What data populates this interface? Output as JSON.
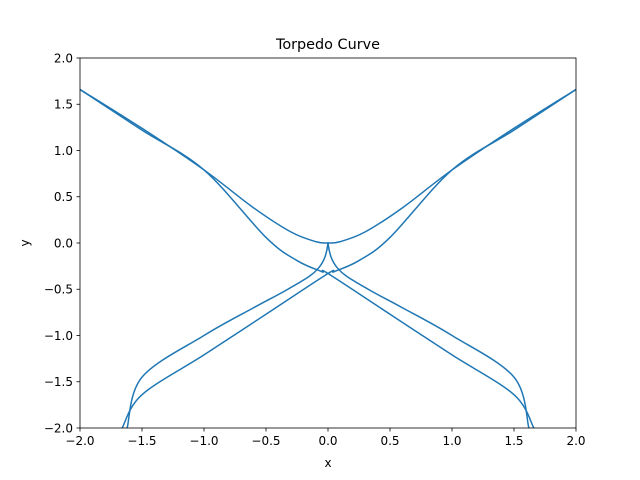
{
  "chart_data": {
    "type": "line",
    "title": "Torpedo Curve",
    "xlabel": "x",
    "ylabel": "y",
    "xlim": [
      -2,
      2
    ],
    "ylim": [
      -2,
      2
    ],
    "grid": false,
    "x_ticks": [
      -2.0,
      -1.5,
      -1.0,
      -0.5,
      0.0,
      0.5,
      1.0,
      1.5,
      2.0
    ],
    "y_ticks": [
      -2.0,
      -1.5,
      -1.0,
      -0.5,
      0.0,
      0.5,
      1.0,
      1.5,
      2.0
    ],
    "x_tick_labels": [
      "−2.0",
      "−1.5",
      "−1.0",
      "−0.5",
      "0.0",
      "0.5",
      "1.0",
      "1.5",
      "2.0"
    ],
    "y_tick_labels": [
      "−2.0",
      "−1.5",
      "−1.0",
      "−0.5",
      "0.0",
      "0.5",
      "1.0",
      "1.5",
      "2.0"
    ],
    "series": [
      {
        "color": "#1f77b4",
        "segments": [
          {
            "points": [
              [
                -2.0,
                1.66
              ],
              [
                -1.5,
                1.24
              ],
              [
                -1.0,
                0.79
              ],
              [
                -0.6,
                0.38
              ],
              [
                -0.3,
                0.12
              ],
              [
                -0.1,
                0.015
              ],
              [
                0.0,
                0.0
              ],
              [
                0.1,
                0.015
              ],
              [
                0.3,
                0.12
              ],
              [
                0.6,
                0.38
              ],
              [
                1.0,
                0.79
              ],
              [
                1.5,
                1.24
              ],
              [
                2.0,
                1.66
              ]
            ]
          },
          {
            "points": [
              [
                -2.0,
                1.66
              ],
              [
                -1.5,
                1.22
              ],
              [
                -1.0,
                0.79
              ],
              [
                -0.5,
                0.06
              ],
              [
                -0.25,
                -0.19
              ],
              [
                -0.05,
                -0.31
              ],
              [
                0.0,
                -0.33
              ],
              [
                0.5,
                -0.77
              ],
              [
                1.0,
                -1.21
              ],
              [
                1.5,
                -1.64
              ],
              [
                1.66,
                -2.0
              ]
            ]
          },
          {
            "points": [
              [
                2.0,
                1.66
              ],
              [
                1.5,
                1.22
              ],
              [
                1.0,
                0.79
              ],
              [
                0.5,
                0.06
              ],
              [
                0.25,
                -0.19
              ],
              [
                0.05,
                -0.31
              ],
              [
                0.0,
                -0.33
              ],
              [
                -0.5,
                -0.77
              ],
              [
                -1.0,
                -1.21
              ],
              [
                -1.5,
                -1.64
              ],
              [
                -1.66,
                -2.0
              ]
            ]
          },
          {
            "points": [
              [
                0.0,
                0.0
              ],
              [
                -0.01,
                -0.08
              ],
              [
                -0.03,
                -0.17
              ],
              [
                -0.07,
                -0.26
              ],
              [
                -0.15,
                -0.36
              ],
              [
                -0.35,
                -0.52
              ],
              [
                -0.6,
                -0.7
              ],
              [
                -1.0,
                -1.0
              ],
              [
                -1.5,
                -1.45
              ],
              [
                -1.62,
                -2.0
              ]
            ]
          },
          {
            "points": [
              [
                0.0,
                0.0
              ],
              [
                0.01,
                -0.08
              ],
              [
                0.03,
                -0.17
              ],
              [
                0.07,
                -0.26
              ],
              [
                0.15,
                -0.36
              ],
              [
                0.35,
                -0.52
              ],
              [
                0.6,
                -0.7
              ],
              [
                1.0,
                -1.0
              ],
              [
                1.5,
                -1.45
              ],
              [
                1.62,
                -2.0
              ]
            ]
          }
        ]
      }
    ]
  }
}
